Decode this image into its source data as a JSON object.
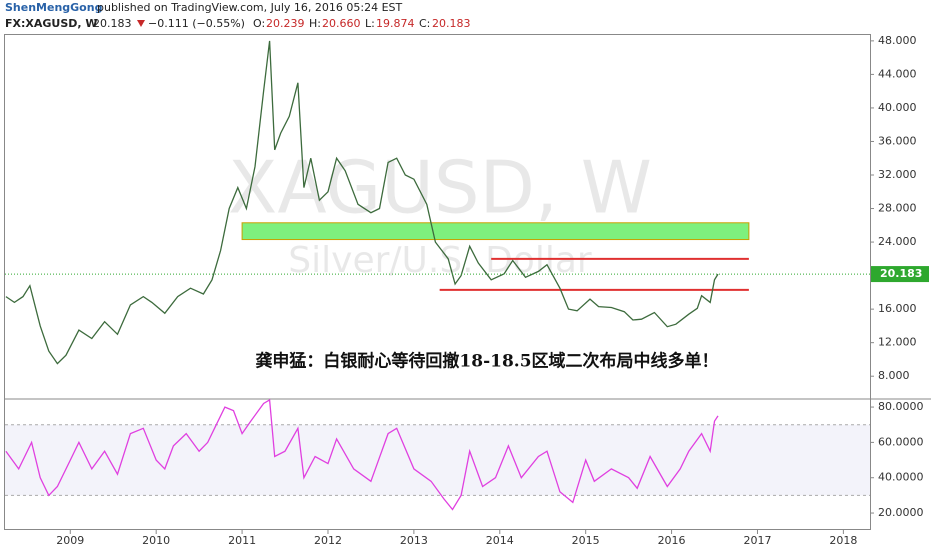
{
  "header": {
    "author": "ShenMengGong",
    "published": "published on TradingView.com, July 16, 2016 05:24 EST",
    "symbol": "FX:XAGUSD, W",
    "last": "20.183",
    "change": "−0.111 (−0.55%)",
    "open_label": "O:",
    "open": "20.239",
    "high_label": "H:",
    "high": "20.660",
    "low_label": "L:",
    "low": "19.874",
    "close_label": "C:",
    "close": "20.183"
  },
  "chart_data": [
    {
      "type": "line",
      "watermark": "XAGUSD, W",
      "watermark_sub": "Silver/U.S. Dollar",
      "annotation": "龚申猛：白银耐心等待回撤18-18.5区域二次布局中线多单！",
      "x": [
        2008.25,
        2008.35,
        2008.45,
        2008.53,
        2008.65,
        2008.75,
        2008.85,
        2008.95,
        2009.1,
        2009.25,
        2009.4,
        2009.55,
        2009.7,
        2009.85,
        2009.95,
        2010.1,
        2010.25,
        2010.4,
        2010.55,
        2010.65,
        2010.75,
        2010.85,
        2010.95,
        2011.05,
        2011.15,
        2011.25,
        2011.32,
        2011.38,
        2011.45,
        2011.55,
        2011.65,
        2011.72,
        2011.8,
        2011.9,
        2012.0,
        2012.1,
        2012.2,
        2012.35,
        2012.5,
        2012.6,
        2012.7,
        2012.8,
        2012.9,
        2013.0,
        2013.15,
        2013.25,
        2013.4,
        2013.48,
        2013.55,
        2013.65,
        2013.75,
        2013.9,
        2014.05,
        2014.15,
        2014.3,
        2014.45,
        2014.55,
        2014.7,
        2014.8,
        2014.9,
        2015.05,
        2015.15,
        2015.3,
        2015.45,
        2015.55,
        2015.65,
        2015.8,
        2015.95,
        2016.05,
        2016.2,
        2016.3,
        2016.35,
        2016.45,
        2016.5,
        2016.54
      ],
      "series": [
        {
          "color": "#3d6b3d",
          "values": [
            17.5,
            16.8,
            17.5,
            18.8,
            14,
            11,
            9.5,
            10.5,
            13.5,
            12.5,
            14.5,
            13,
            16.5,
            17.5,
            16.8,
            15.5,
            17.5,
            18.5,
            17.8,
            19.5,
            23,
            28,
            30.5,
            28,
            33,
            42,
            48,
            35,
            37,
            39,
            43,
            30.5,
            34,
            29,
            30,
            34,
            32.5,
            28.5,
            27.5,
            28,
            33.5,
            34,
            32,
            31.5,
            28.5,
            24,
            22,
            19,
            20,
            23.5,
            21.5,
            19.5,
            20.2,
            21.8,
            19.8,
            20.5,
            21.3,
            18.5,
            16,
            15.8,
            17.2,
            16.3,
            16.2,
            15.7,
            14.7,
            14.8,
            15.6,
            13.9,
            14.2,
            15.4,
            16.1,
            17.6,
            16.8,
            19.5,
            20.183
          ]
        }
      ],
      "zone": {
        "low": 24.3,
        "high": 26.3,
        "from": 2011.0,
        "to": 2016.9,
        "color": "#7ef07e"
      },
      "levels": [
        {
          "value": 22,
          "from": 2013.9,
          "to": 2016.9,
          "color": "#e03030"
        },
        {
          "value": 18.3,
          "from": 2013.3,
          "to": 2016.9,
          "color": "#e03030"
        }
      ],
      "last_value": {
        "value": 20.183,
        "label": "20.183"
      },
      "xlim": [
        2008.24,
        2018.31
      ],
      "ylim": [
        5.4,
        48.7
      ],
      "yticks": [
        {
          "value": 8,
          "label": "8.000"
        },
        {
          "value": 12,
          "label": "12.000"
        },
        {
          "value": 16,
          "label": "16.000"
        },
        {
          "value": 20,
          "label": "20.000"
        },
        {
          "value": 24,
          "label": "24.000"
        },
        {
          "value": 28,
          "label": "28.000"
        },
        {
          "value": 32,
          "label": "32.000"
        },
        {
          "value": 36,
          "label": "36.000"
        },
        {
          "value": 40,
          "label": "40.000"
        },
        {
          "value": 44,
          "label": "44.000"
        },
        {
          "value": 48,
          "label": "48.000"
        }
      ]
    },
    {
      "type": "line",
      "x": [
        2008.25,
        2008.4,
        2008.55,
        2008.65,
        2008.75,
        2008.85,
        2009.0,
        2009.1,
        2009.25,
        2009.4,
        2009.55,
        2009.7,
        2009.85,
        2010.0,
        2010.1,
        2010.2,
        2010.35,
        2010.5,
        2010.6,
        2010.7,
        2010.8,
        2010.9,
        2011.0,
        2011.1,
        2011.25,
        2011.32,
        2011.38,
        2011.5,
        2011.65,
        2011.72,
        2011.85,
        2012.0,
        2012.1,
        2012.3,
        2012.5,
        2012.7,
        2012.8,
        2013.0,
        2013.2,
        2013.35,
        2013.45,
        2013.55,
        2013.65,
        2013.8,
        2013.95,
        2014.1,
        2014.25,
        2014.45,
        2014.55,
        2014.7,
        2014.85,
        2015.0,
        2015.1,
        2015.3,
        2015.5,
        2015.6,
        2015.75,
        2015.95,
        2016.1,
        2016.2,
        2016.35,
        2016.45,
        2016.5,
        2016.54
      ],
      "series": [
        {
          "color": "#e040e0",
          "values": [
            55,
            45,
            60,
            40,
            30,
            35,
            50,
            60,
            45,
            55,
            42,
            65,
            68,
            50,
            45,
            58,
            65,
            55,
            60,
            70,
            80,
            78,
            65,
            72,
            82,
            84,
            52,
            55,
            68,
            40,
            52,
            48,
            62,
            45,
            38,
            65,
            68,
            45,
            38,
            28,
            22,
            30,
            55,
            35,
            40,
            58,
            40,
            52,
            55,
            32,
            26,
            50,
            38,
            45,
            40,
            34,
            52,
            35,
            45,
            55,
            65,
            55,
            72,
            75
          ]
        }
      ],
      "levels": [
        70,
        30
      ],
      "xlim": [
        2008.24,
        2018.31
      ],
      "ylim": [
        10.4,
        84
      ],
      "yticks": [
        {
          "value": 20,
          "label": "20.0000"
        },
        {
          "value": 40,
          "label": "40.0000"
        },
        {
          "value": 60,
          "label": "60.0000"
        },
        {
          "value": 80,
          "label": "80.0000"
        }
      ],
      "xticks": [
        2009,
        2010,
        2011,
        2012,
        2013,
        2014,
        2015,
        2016,
        2017,
        2018
      ]
    }
  ]
}
